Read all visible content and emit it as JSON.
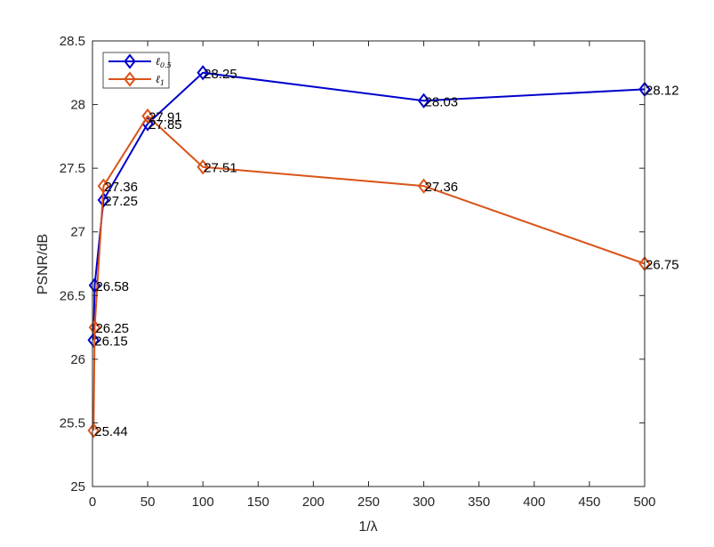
{
  "chart_data": {
    "type": "line",
    "title": "",
    "xlabel": "1/λ",
    "ylabel": "PSNR/dB",
    "xlim": [
      0,
      500
    ],
    "ylim": [
      25,
      28.5
    ],
    "xticks": [
      0,
      50,
      100,
      150,
      200,
      250,
      300,
      350,
      400,
      450,
      500
    ],
    "yticks": [
      25,
      25.5,
      26,
      26.5,
      27,
      27.5,
      28,
      28.5
    ],
    "ytick_labels": [
      "25",
      "25.5",
      "26",
      "26.5",
      "27",
      "27.5",
      "28",
      "28.5"
    ],
    "grid": false,
    "legend_position": "top-left",
    "x": [
      1,
      2,
      10,
      50,
      100,
      300,
      500
    ],
    "series": [
      {
        "name": "ℓ0.5",
        "name_main": "ℓ",
        "name_sub": "0.5",
        "color": "#0000cc",
        "marker": "diamond",
        "values": [
          26.15,
          26.58,
          27.25,
          27.85,
          28.25,
          28.03,
          28.12
        ],
        "labels": [
          "26.15",
          "26.58",
          "27.25",
          "27.85",
          "28.25",
          "28.03",
          "28.12"
        ]
      },
      {
        "name": "ℓ1",
        "name_main": "ℓ",
        "name_sub": "1",
        "color": "#d95319",
        "marker": "diamond",
        "values": [
          25.44,
          26.25,
          27.36,
          27.91,
          27.51,
          27.36,
          26.75
        ],
        "labels": [
          "25.44",
          "26.25",
          "27.36",
          "27.91",
          "27.51",
          "27.36",
          "26.75"
        ]
      }
    ]
  }
}
